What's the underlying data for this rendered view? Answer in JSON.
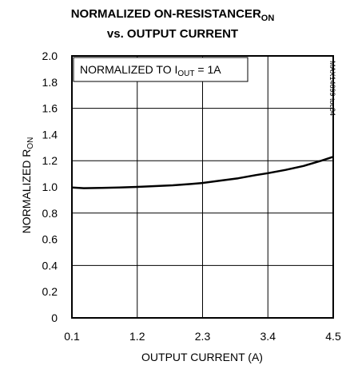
{
  "chart_data": {
    "type": "line",
    "title_line1": "NORMALIZED ON-RESISTANCE",
    "title_line1_sub": "ON",
    "title_line1_main": "R",
    "title_line2": "vs. OUTPUT CURRENT",
    "xlabel": "OUTPUT CURRENT (A)",
    "ylabel_main": "NORMALIZED R",
    "ylabel_sub": "ON",
    "annotation_main": "NORMALIZED TO I",
    "annotation_sub": "OUT",
    "annotation_tail": " = 1A",
    "figure_id": "MAX14699 toc04",
    "xlim": [
      0.1,
      4.5
    ],
    "ylim": [
      0,
      2.0
    ],
    "x_ticks": [
      0.1,
      1.2,
      2.3,
      3.4,
      4.5
    ],
    "x_tick_labels": [
      "0.1",
      "1.2",
      "2.3",
      "3.4",
      "4.5"
    ],
    "y_ticks": [
      0,
      0.2,
      0.4,
      0.6,
      0.8,
      1.0,
      1.2,
      1.4,
      1.6,
      1.8,
      2.0
    ],
    "y_tick_labels": [
      "0",
      "0.2",
      "0.4",
      "0.6",
      "0.8",
      "1.0",
      "1.2",
      "1.4",
      "1.6",
      "1.8",
      "2.0"
    ],
    "x_grid_lines": [
      0.1,
      1.2,
      2.3,
      3.4,
      4.5
    ],
    "y_grid_lines": [
      0,
      0.4,
      0.8,
      1.2,
      1.6,
      2.0
    ],
    "grid": true,
    "series": [
      {
        "color": "#000000",
        "x": [
          0.1,
          0.3,
          0.6,
          0.9,
          1.2,
          1.5,
          1.8,
          2.1,
          2.3,
          2.6,
          2.9,
          3.2,
          3.4,
          3.7,
          4.0,
          4.3,
          4.5
        ],
        "y": [
          0.995,
          0.99,
          0.992,
          0.996,
          1.0,
          1.006,
          1.012,
          1.022,
          1.03,
          1.048,
          1.066,
          1.09,
          1.105,
          1.13,
          1.16,
          1.2,
          1.23
        ]
      }
    ]
  }
}
